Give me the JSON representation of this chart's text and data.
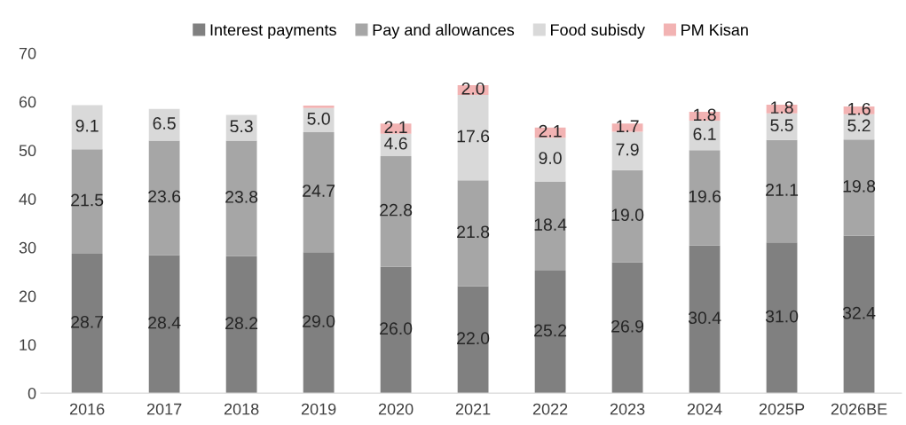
{
  "chart_data": {
    "type": "bar",
    "stacked": true,
    "categories": [
      "2016",
      "2017",
      "2018",
      "2019",
      "2020",
      "2021",
      "2022",
      "2023",
      "2024",
      "2025P",
      "2026BE"
    ],
    "series": [
      {
        "name": "Interest payments",
        "color": "#808080",
        "values": [
          28.7,
          28.4,
          28.2,
          29.0,
          26.0,
          22.0,
          25.2,
          26.9,
          30.4,
          31.0,
          32.4
        ],
        "value_labels": [
          "28.7",
          "28.4",
          "28.2",
          "29.0",
          "26.0",
          "22.0",
          "25.2",
          "26.9",
          "30.4",
          "31.0",
          "32.4"
        ]
      },
      {
        "name": "Pay and allowances",
        "color": "#a6a6a6",
        "values": [
          21.5,
          23.6,
          23.8,
          24.7,
          22.8,
          21.8,
          18.4,
          19.0,
          19.6,
          21.1,
          19.8
        ],
        "value_labels": [
          "21.5",
          "23.6",
          "23.8",
          "24.7",
          "22.8",
          "21.8",
          "18.4",
          "19.0",
          "19.6",
          "21.1",
          "19.8"
        ]
      },
      {
        "name": "Food subisdy",
        "color": "#d9d9d9",
        "values": [
          9.1,
          6.5,
          5.3,
          5.0,
          4.6,
          17.6,
          9.0,
          7.9,
          6.1,
          5.5,
          5.2
        ],
        "value_labels": [
          "9.1",
          "6.5",
          "5.3",
          "5.0",
          "4.6",
          "17.6",
          "9.0",
          "7.9",
          "6.1",
          "5.5",
          "5.2"
        ]
      },
      {
        "name": "PM Kisan",
        "color": "#f2b3b3",
        "values": [
          null,
          null,
          null,
          0.5,
          2.1,
          2.0,
          2.1,
          1.7,
          1.8,
          1.8,
          1.6
        ],
        "value_labels": [
          null,
          null,
          null,
          null,
          "2.1",
          "2.0",
          "2.1",
          "1.7",
          "1.8",
          "1.8",
          "1.6"
        ]
      }
    ],
    "ylim": [
      0,
      70
    ],
    "yticks": [
      0,
      10,
      20,
      30,
      40,
      50,
      60,
      70
    ],
    "legend": "top",
    "grid": false
  }
}
